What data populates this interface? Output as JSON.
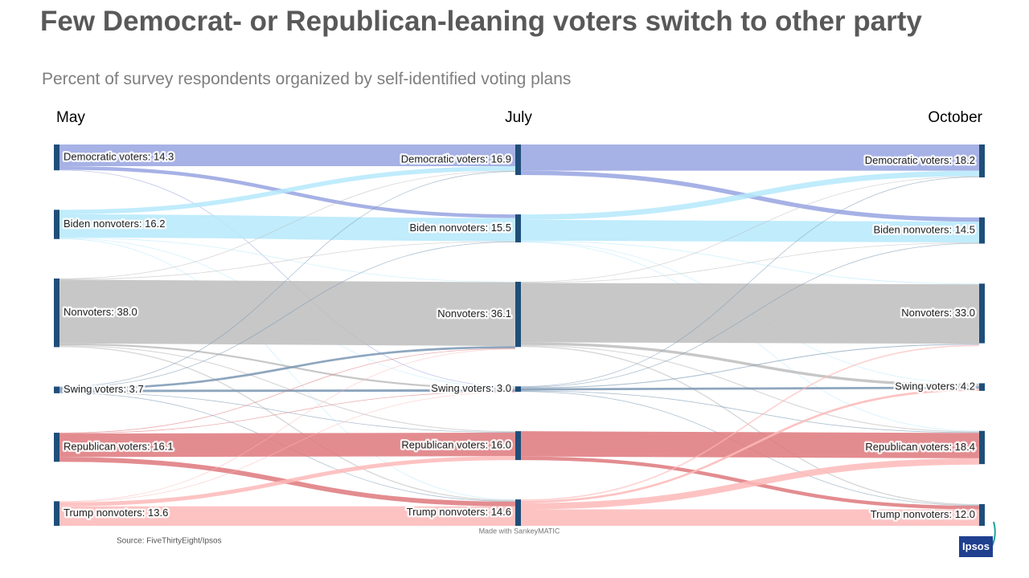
{
  "chart_data": {
    "type": "sankey",
    "title": "Few Democrat- or Republican-leaning voters switch to other party",
    "subtitle": "Percent of survey respondents organized by self-identified voting plans",
    "source": "Source: FiveThirtyEight/Ipsos",
    "credit": "Made with SankeyMATIC",
    "node_color": "#1f4e79",
    "columns": [
      {
        "name": "May",
        "nodes": [
          {
            "label": "Democratic voters: 14.3",
            "value": 14.3,
            "color": "#97a3e0",
            "flows": [
              12.0,
              2.0,
              0,
              0.3,
              0,
              0
            ]
          },
          {
            "label": "Biden nonvoters: 16.2",
            "value": 16.2,
            "color": "#b5e9fb",
            "flows": [
              2.5,
              12.8,
              0.3,
              0.3,
              0,
              0.3
            ]
          },
          {
            "label": "Nonvoters: 38.0",
            "value": 38.0,
            "color": "#bdbdbd",
            "flows": [
              0.3,
              0.3,
              35.3,
              1.0,
              0.5,
              0.6
            ]
          },
          {
            "label": "Swing voters: 3.7",
            "value": 3.7,
            "color": "#7a97b3",
            "flows": [
              0.3,
              0.3,
              1.2,
              1.3,
              0.3,
              0.3
            ]
          },
          {
            "label": "Republican voters: 16.1",
            "value": 16.1,
            "color": "#de787c",
            "flows": [
              0,
              0,
              0.3,
              0.2,
              13.0,
              2.6
            ]
          },
          {
            "label": "Trump nonvoters: 13.6",
            "value": 13.6,
            "color": "#fdb9b9",
            "flows": [
              0,
              0,
              0.3,
              0.3,
              2.2,
              10.8
            ]
          }
        ]
      },
      {
        "name": "July",
        "nodes": [
          {
            "label": "Democratic voters: 16.9",
            "value": 16.9,
            "color": "#97a3e0",
            "flows": [
              14.5,
              2.4,
              0,
              0,
              0,
              0
            ]
          },
          {
            "label": "Biden nonvoters: 15.5",
            "value": 15.5,
            "color": "#b5e9fb",
            "flows": [
              3.0,
              11.5,
              0.4,
              0.3,
              0.3,
              0
            ]
          },
          {
            "label": "Nonvoters: 36.1",
            "value": 36.1,
            "color": "#bdbdbd",
            "flows": [
              0.3,
              0.3,
              32.9,
              1.5,
              0.5,
              0.6
            ]
          },
          {
            "label": "Swing voters: 3.0",
            "value": 3.0,
            "color": "#7a97b3",
            "flows": [
              0.3,
              0.3,
              0.5,
              1.2,
              0.4,
              0.3
            ]
          },
          {
            "label": "Republican voters: 16.0",
            "value": 16.0,
            "color": "#de787c",
            "flows": [
              0,
              0,
              0,
              0,
              14.0,
              2.0
            ]
          },
          {
            "label": "Trump nonvoters: 14.6",
            "value": 14.6,
            "color": "#fdb9b9",
            "flows": [
              0,
              0,
              0.8,
              1.2,
              3.5,
              9.1
            ]
          }
        ]
      },
      {
        "name": "October",
        "nodes": [
          {
            "label": "Democratic voters: 18.2",
            "value": 18.2,
            "color": "#97a3e0"
          },
          {
            "label": "Biden nonvoters: 14.5",
            "value": 14.5,
            "color": "#b5e9fb"
          },
          {
            "label": "Nonvoters: 33.0",
            "value": 33.0,
            "color": "#bdbdbd"
          },
          {
            "label": "Swing voters: 4.2",
            "value": 4.2,
            "color": "#7a97b3"
          },
          {
            "label": "Republican voters: 18.4",
            "value": 18.4,
            "color": "#de787c"
          },
          {
            "label": "Trump nonvoters: 12.0",
            "value": 12.0,
            "color": "#fdb9b9"
          }
        ]
      }
    ]
  },
  "logo": "Ipsos"
}
